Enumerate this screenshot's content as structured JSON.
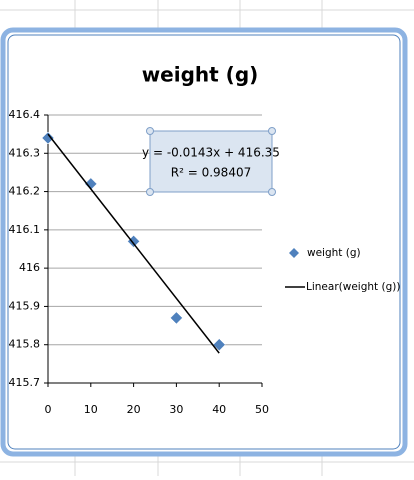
{
  "chart_data": {
    "type": "scatter",
    "title": "weight (g)",
    "annotations": [
      "y = -0.0143x + 416.35",
      "R² = 0.98407"
    ],
    "series": [
      {
        "name": "weight (g)",
        "color": "#4f81bd",
        "x": [
          0,
          10,
          20,
          30,
          40
        ],
        "values": [
          416.34,
          416.22,
          416.07,
          415.87,
          415.8
        ]
      },
      {
        "name": "Linear(weight (g))",
        "color": "#000000",
        "x": [
          0,
          40
        ],
        "values": [
          416.35,
          415.778
        ],
        "line": true
      }
    ],
    "xlim": [
      0,
      50
    ],
    "xticks": [
      0,
      10,
      20,
      30,
      40,
      50
    ],
    "ylim": [
      415.7,
      416.4
    ],
    "yticks": [
      415.7,
      415.8,
      415.9,
      416,
      416.1,
      416.2,
      416.3,
      416.4
    ],
    "grid": true,
    "legend": "right"
  }
}
